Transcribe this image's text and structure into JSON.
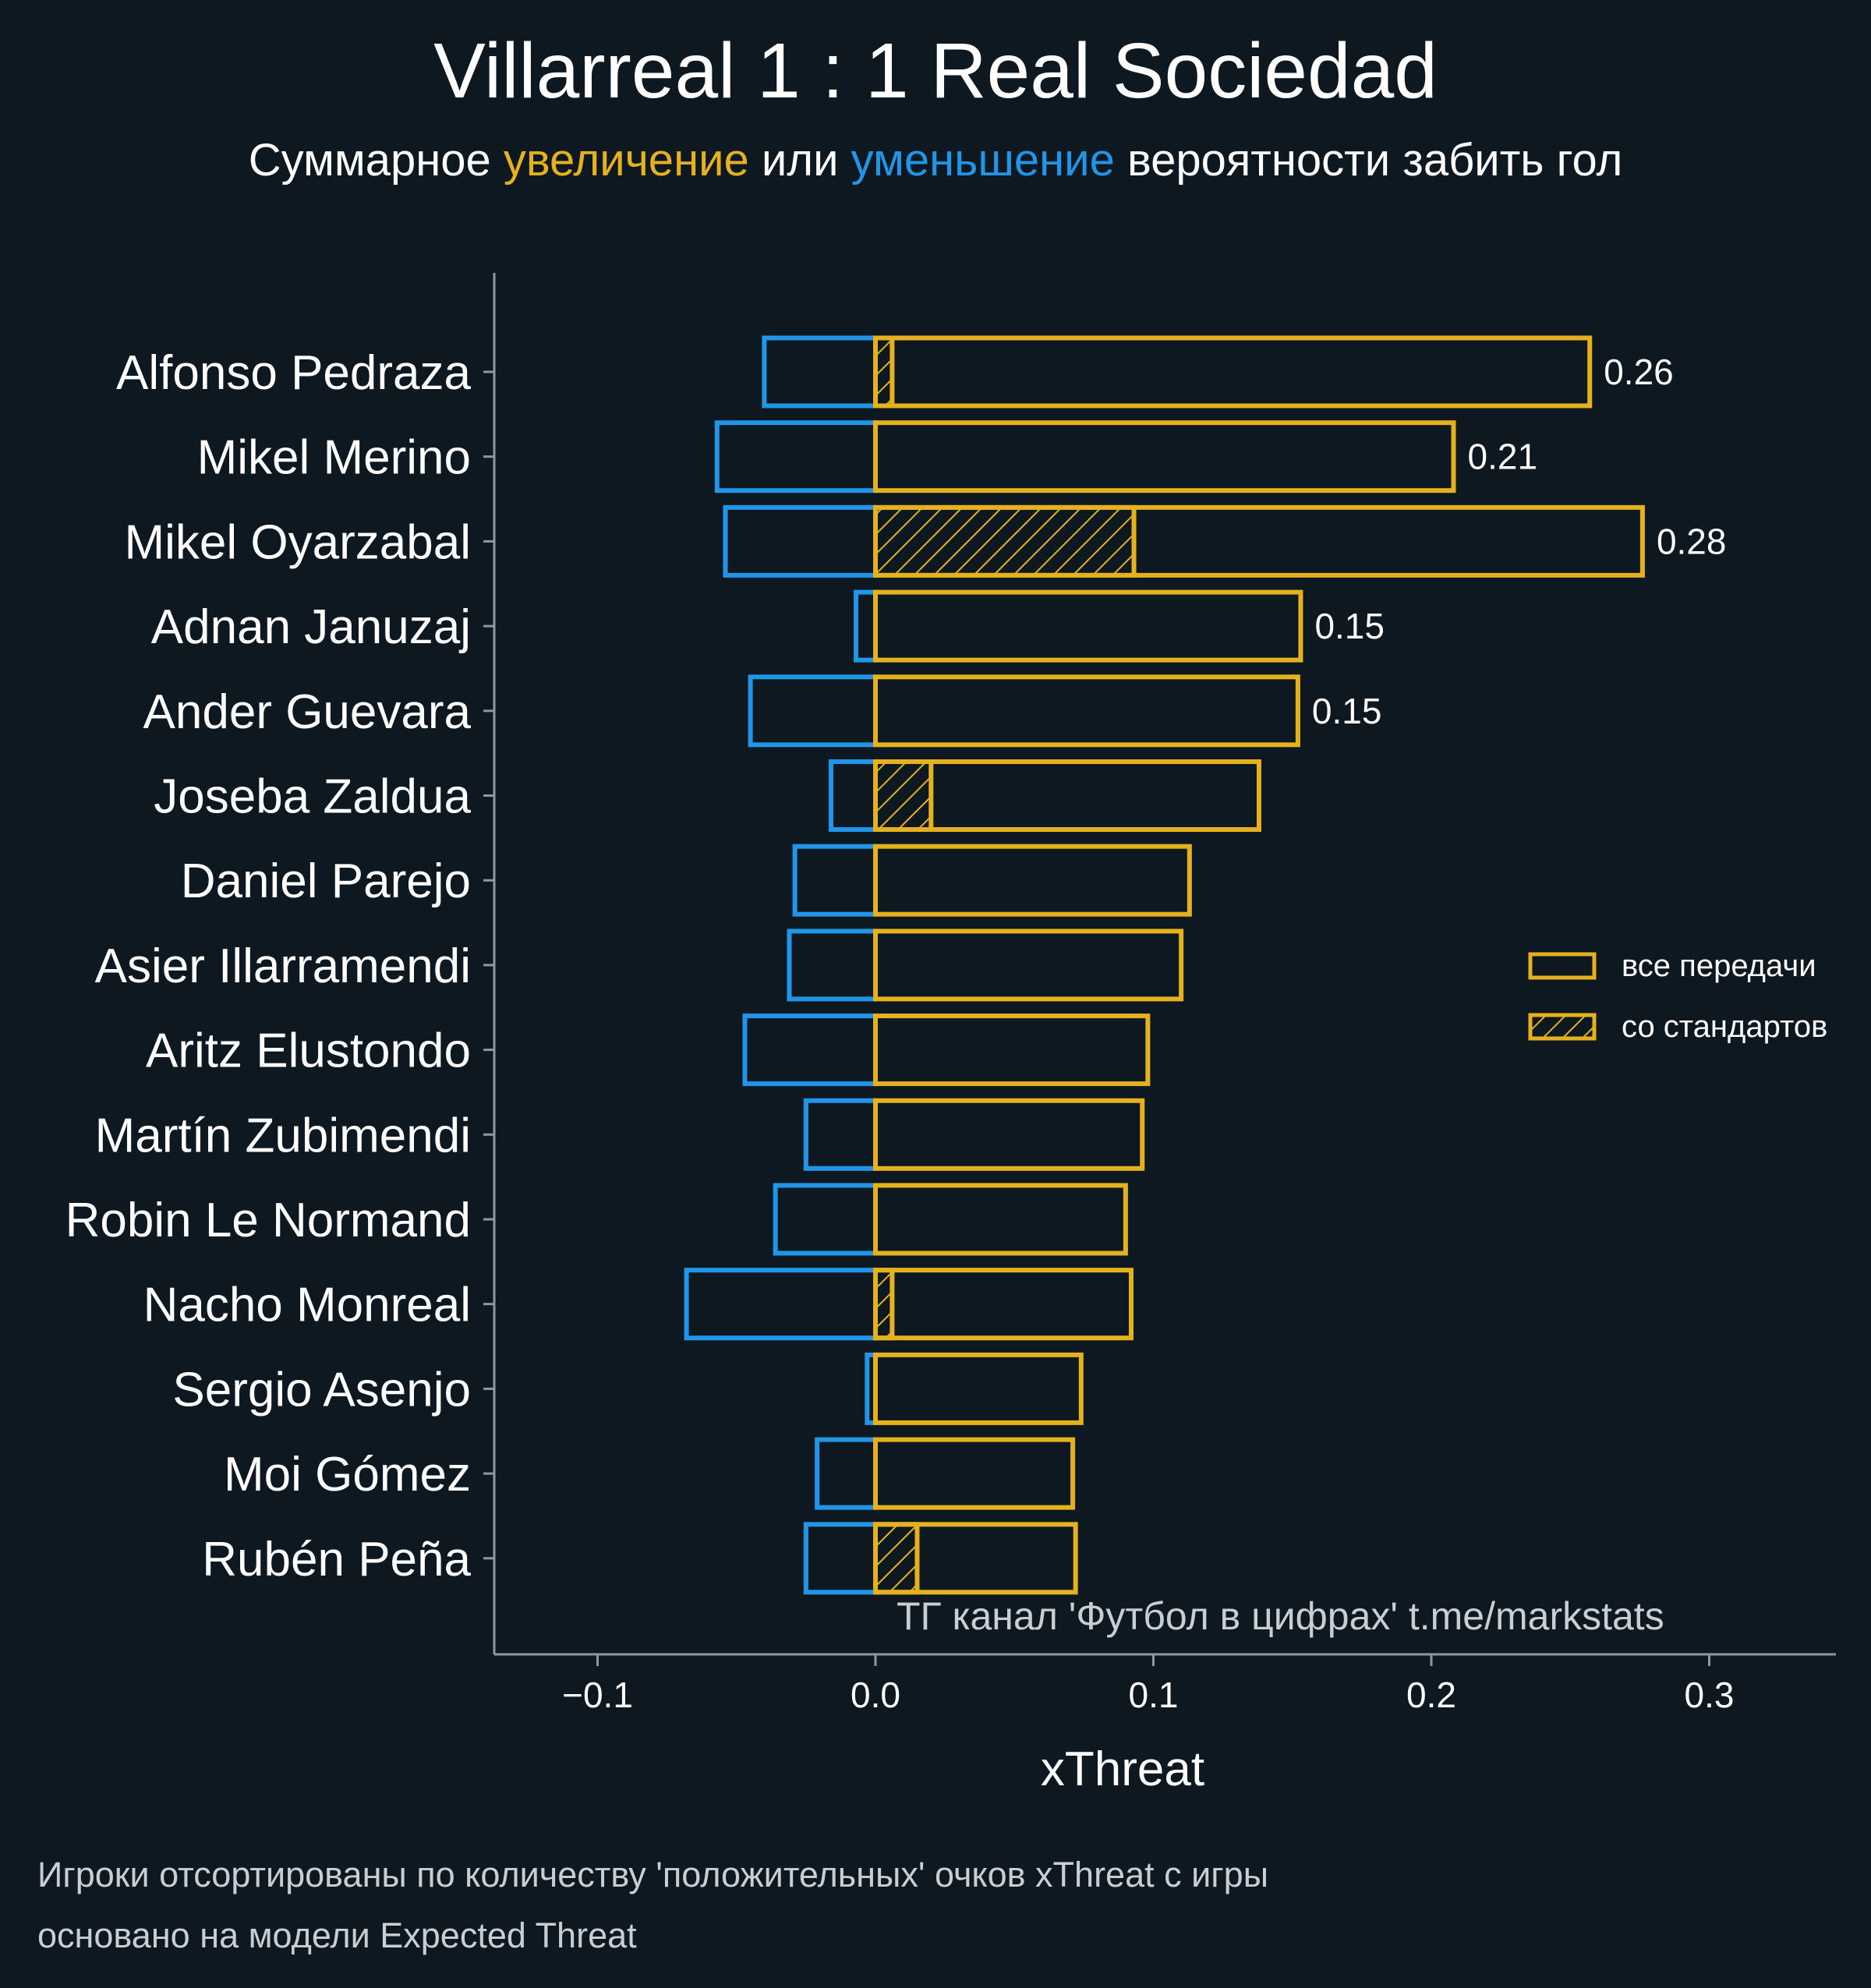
{
  "chart_data": {
    "type": "bar",
    "title": "Villarreal 1 : 1 Real Sociedad",
    "subtitle": [
      {
        "text": "Суммарное ",
        "color": "#ffffff"
      },
      {
        "text": "увеличение",
        "color": "#e6b11e"
      },
      {
        "text": " или ",
        "color": "#ffffff"
      },
      {
        "text": "уменьшение",
        "color": "#2196e8"
      },
      {
        "text": " вероятности забить гол",
        "color": "#ffffff"
      }
    ],
    "xlabel": "xThreat",
    "ylabel": "",
    "xlim": [
      -0.138,
      0.345
    ],
    "xticks": [
      -0.1,
      0.0,
      0.1,
      0.2,
      0.3
    ],
    "xtick_labels": [
      "−0.1",
      "0.0",
      "0.1",
      "0.2",
      "0.3"
    ],
    "grid": false,
    "legend_position": "right",
    "legend": [
      {
        "label": "все передачи",
        "hatch": false
      },
      {
        "label": "со стандартов",
        "hatch": true
      }
    ],
    "colors": {
      "positive": "#e6b11e",
      "negative": "#2196e8",
      "background": "#0e1821",
      "axis": "#8a9aa4"
    },
    "categories": [
      "Alfonso Pedraza",
      "Mikel Merino",
      "Mikel Oyarzabal",
      "Adnan Januzaj",
      "Ander Guevara",
      "Joseba Zaldua",
      "Daniel Parejo",
      "Asier Illarramendi",
      "Aritz Elustondo",
      "Martín Zubimendi",
      "Robin Le Normand",
      "Nacho Monreal",
      "Sergio Asenjo",
      "Moi Gómez",
      "Rubén Peña"
    ],
    "series": [
      {
        "name": "все передачи",
        "key": "positive",
        "values": [
          0.257,
          0.208,
          0.276,
          0.153,
          0.152,
          0.138,
          0.113,
          0.11,
          0.098,
          0.096,
          0.09,
          0.092,
          0.074,
          0.071,
          0.072
        ]
      },
      {
        "key": "negative",
        "values": [
          -0.04,
          -0.057,
          -0.054,
          -0.007,
          -0.045,
          -0.016,
          -0.029,
          -0.031,
          -0.047,
          -0.025,
          -0.036,
          -0.068,
          -0.003,
          -0.021,
          -0.025
        ]
      },
      {
        "name": "со стандартов",
        "key": "set_pieces",
        "values": [
          0.006,
          0.0,
          0.093,
          0.0,
          0.0,
          0.02,
          0.0,
          0.0,
          0.0,
          0.0,
          0.0,
          0.006,
          0.0,
          0.0,
          0.015
        ]
      }
    ],
    "value_labels": [
      "0.26",
      "0.21",
      "0.28",
      "0.15",
      "0.15",
      "",
      "",
      "",
      "",
      "",
      "",
      "",
      "",
      "",
      ""
    ],
    "watermark": "ТГ канал 'Футбол в цифрах'  t.me/markstats",
    "footnotes": [
      "Игроки отсортированы по количеству 'положительных' очков xThreat с игры",
      "основано на модели Expected Threat"
    ]
  }
}
